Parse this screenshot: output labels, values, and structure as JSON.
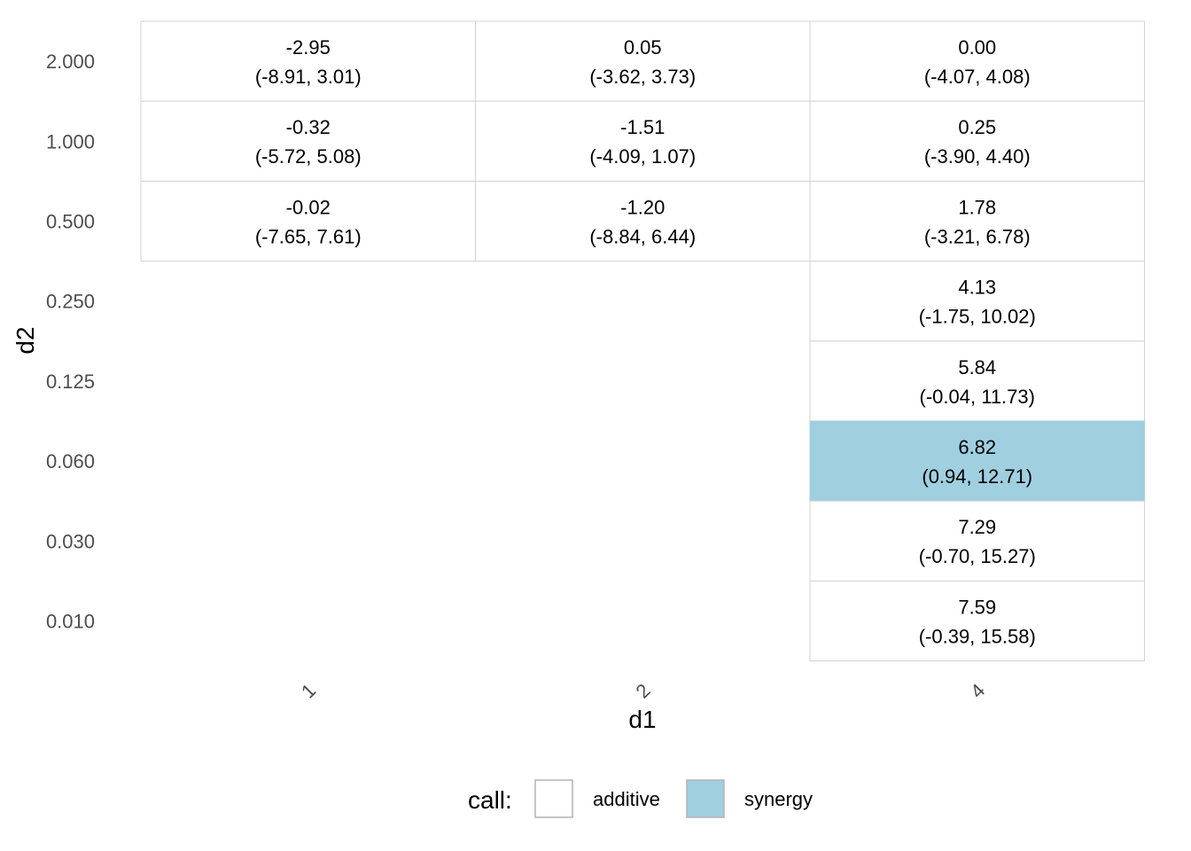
{
  "chart_data": {
    "type": "heatmap",
    "xlabel": "d1",
    "ylabel": "d2",
    "x_categories": [
      "1",
      "2",
      "4"
    ],
    "y_categories": [
      "2.000",
      "1.000",
      "0.500",
      "0.250",
      "0.125",
      "0.060",
      "0.030",
      "0.010"
    ],
    "cells": [
      {
        "x": "1",
        "y": "2.000",
        "value": "-2.95",
        "ci": "(-8.91, 3.01)",
        "call": "additive"
      },
      {
        "x": "2",
        "y": "2.000",
        "value": "0.05",
        "ci": "(-3.62, 3.73)",
        "call": "additive"
      },
      {
        "x": "4",
        "y": "2.000",
        "value": "0.00",
        "ci": "(-4.07, 4.08)",
        "call": "additive"
      },
      {
        "x": "1",
        "y": "1.000",
        "value": "-0.32",
        "ci": "(-5.72, 5.08)",
        "call": "additive"
      },
      {
        "x": "2",
        "y": "1.000",
        "value": "-1.51",
        "ci": "(-4.09, 1.07)",
        "call": "additive"
      },
      {
        "x": "4",
        "y": "1.000",
        "value": "0.25",
        "ci": "(-3.90, 4.40)",
        "call": "additive"
      },
      {
        "x": "1",
        "y": "0.500",
        "value": "-0.02",
        "ci": "(-7.65, 7.61)",
        "call": "additive"
      },
      {
        "x": "2",
        "y": "0.500",
        "value": "-1.20",
        "ci": "(-8.84, 6.44)",
        "call": "additive"
      },
      {
        "x": "4",
        "y": "0.500",
        "value": "1.78",
        "ci": "(-3.21, 6.78)",
        "call": "additive"
      },
      {
        "x": "4",
        "y": "0.250",
        "value": "4.13",
        "ci": "(-1.75, 10.02)",
        "call": "additive"
      },
      {
        "x": "4",
        "y": "0.125",
        "value": "5.84",
        "ci": "(-0.04, 11.73)",
        "call": "additive"
      },
      {
        "x": "4",
        "y": "0.060",
        "value": "6.82",
        "ci": "(0.94, 12.71)",
        "call": "synergy"
      },
      {
        "x": "4",
        "y": "0.030",
        "value": "7.29",
        "ci": "(-0.70, 15.27)",
        "call": "additive"
      },
      {
        "x": "4",
        "y": "0.010",
        "value": "7.59",
        "ci": "(-0.39, 15.58)",
        "call": "additive"
      }
    ],
    "legend": {
      "title": "call:",
      "placement": "bottom",
      "entries": [
        {
          "label": "additive",
          "color": "#ffffff"
        },
        {
          "label": "synergy",
          "color": "#a0cfe0"
        }
      ]
    },
    "colors": {
      "additive": "#ffffff",
      "synergy": "#a0cfe0",
      "cell_border": "#d3d3d3"
    }
  }
}
